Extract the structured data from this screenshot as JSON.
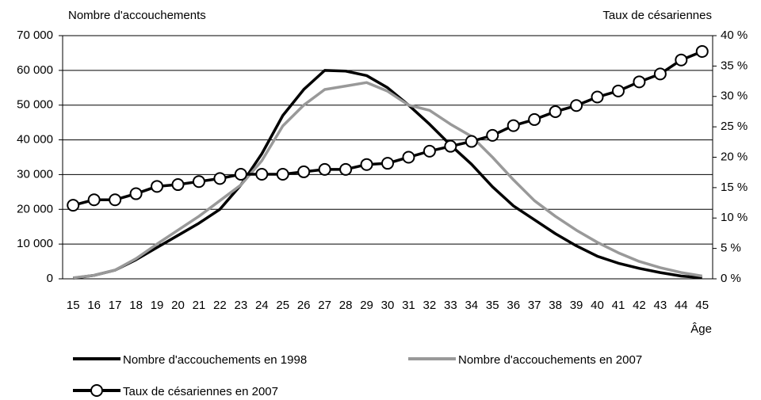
{
  "chart_data": {
    "type": "line",
    "y_axis_label": "Nombre d'accouchements",
    "y2_axis_label": "Taux de césariennes",
    "x_axis_label": "Âge",
    "categories": [
      "15",
      "16",
      "17",
      "18",
      "19",
      "20",
      "21",
      "22",
      "23",
      "24",
      "25",
      "26",
      "27",
      "28",
      "29",
      "30",
      "31",
      "32",
      "33",
      "34",
      "35",
      "36",
      "37",
      "38",
      "39",
      "40",
      "41",
      "42",
      "43",
      "44",
      "45"
    ],
    "series": [
      {
        "name": "Nombre d'accouchements en 1998",
        "color": "#000000",
        "values": [
          200,
          1000,
          2500,
          5500,
          9000,
          12500,
          16000,
          20000,
          27000,
          36000,
          47000,
          54500,
          60000,
          59800,
          58500,
          55000,
          50000,
          44500,
          38500,
          33000,
          26500,
          21000,
          17000,
          13000,
          9500,
          6500,
          4500,
          3000,
          1800,
          800,
          300
        ]
      },
      {
        "name": "Nombre d'accouchements en 2007",
        "color": "#999999",
        "values": [
          300,
          1000,
          2500,
          5800,
          10000,
          14000,
          18000,
          22500,
          27000,
          34000,
          44000,
          50000,
          54500,
          55500,
          56500,
          54000,
          50000,
          48500,
          44500,
          41000,
          35000,
          28500,
          22500,
          18000,
          14000,
          10500,
          7500,
          5000,
          3200,
          1800,
          800
        ]
      },
      {
        "name": "Taux de césariennes en 2007",
        "color": "#000000",
        "axis": "y2",
        "marker": "circle",
        "values": [
          12.1,
          13,
          13,
          14,
          15.2,
          15.5,
          16,
          16.5,
          17.2,
          17.2,
          17.2,
          17.6,
          18,
          18,
          18.8,
          19,
          20,
          21,
          21.8,
          22.6,
          23.6,
          25.2,
          26.2,
          27.5,
          28.5,
          29.9,
          30.9,
          32.4,
          33.7,
          36,
          37.4
        ]
      }
    ],
    "ylim": [
      0,
      70000
    ],
    "yticks": [
      0,
      {
        "value": 10000,
        "label": "10 000"
      },
      {
        "value": 20000,
        "label": "20 000"
      },
      {
        "value": 30000,
        "label": "30 000"
      },
      {
        "value": 40000,
        "label": "40 000"
      },
      {
        "value": 50000,
        "label": "50 000"
      },
      {
        "value": 60000,
        "label": "60 000"
      },
      {
        "value": 70000,
        "label": "70 000"
      }
    ],
    "y2lim": [
      0,
      40
    ],
    "y2ticks": [
      {
        "value": 0,
        "label": "0 %"
      },
      {
        "value": 5,
        "label": "5 %"
      },
      {
        "value": 10,
        "label": "10 %"
      },
      {
        "value": 15,
        "label": "15 %"
      },
      {
        "value": 20,
        "label": "20 %"
      },
      {
        "value": 25,
        "label": "25 %"
      },
      {
        "value": 30,
        "label": "30 %"
      },
      {
        "value": 35,
        "label": "35 %"
      },
      {
        "value": 40,
        "label": "40 %"
      }
    ],
    "grid": true,
    "legend": "bottom"
  }
}
